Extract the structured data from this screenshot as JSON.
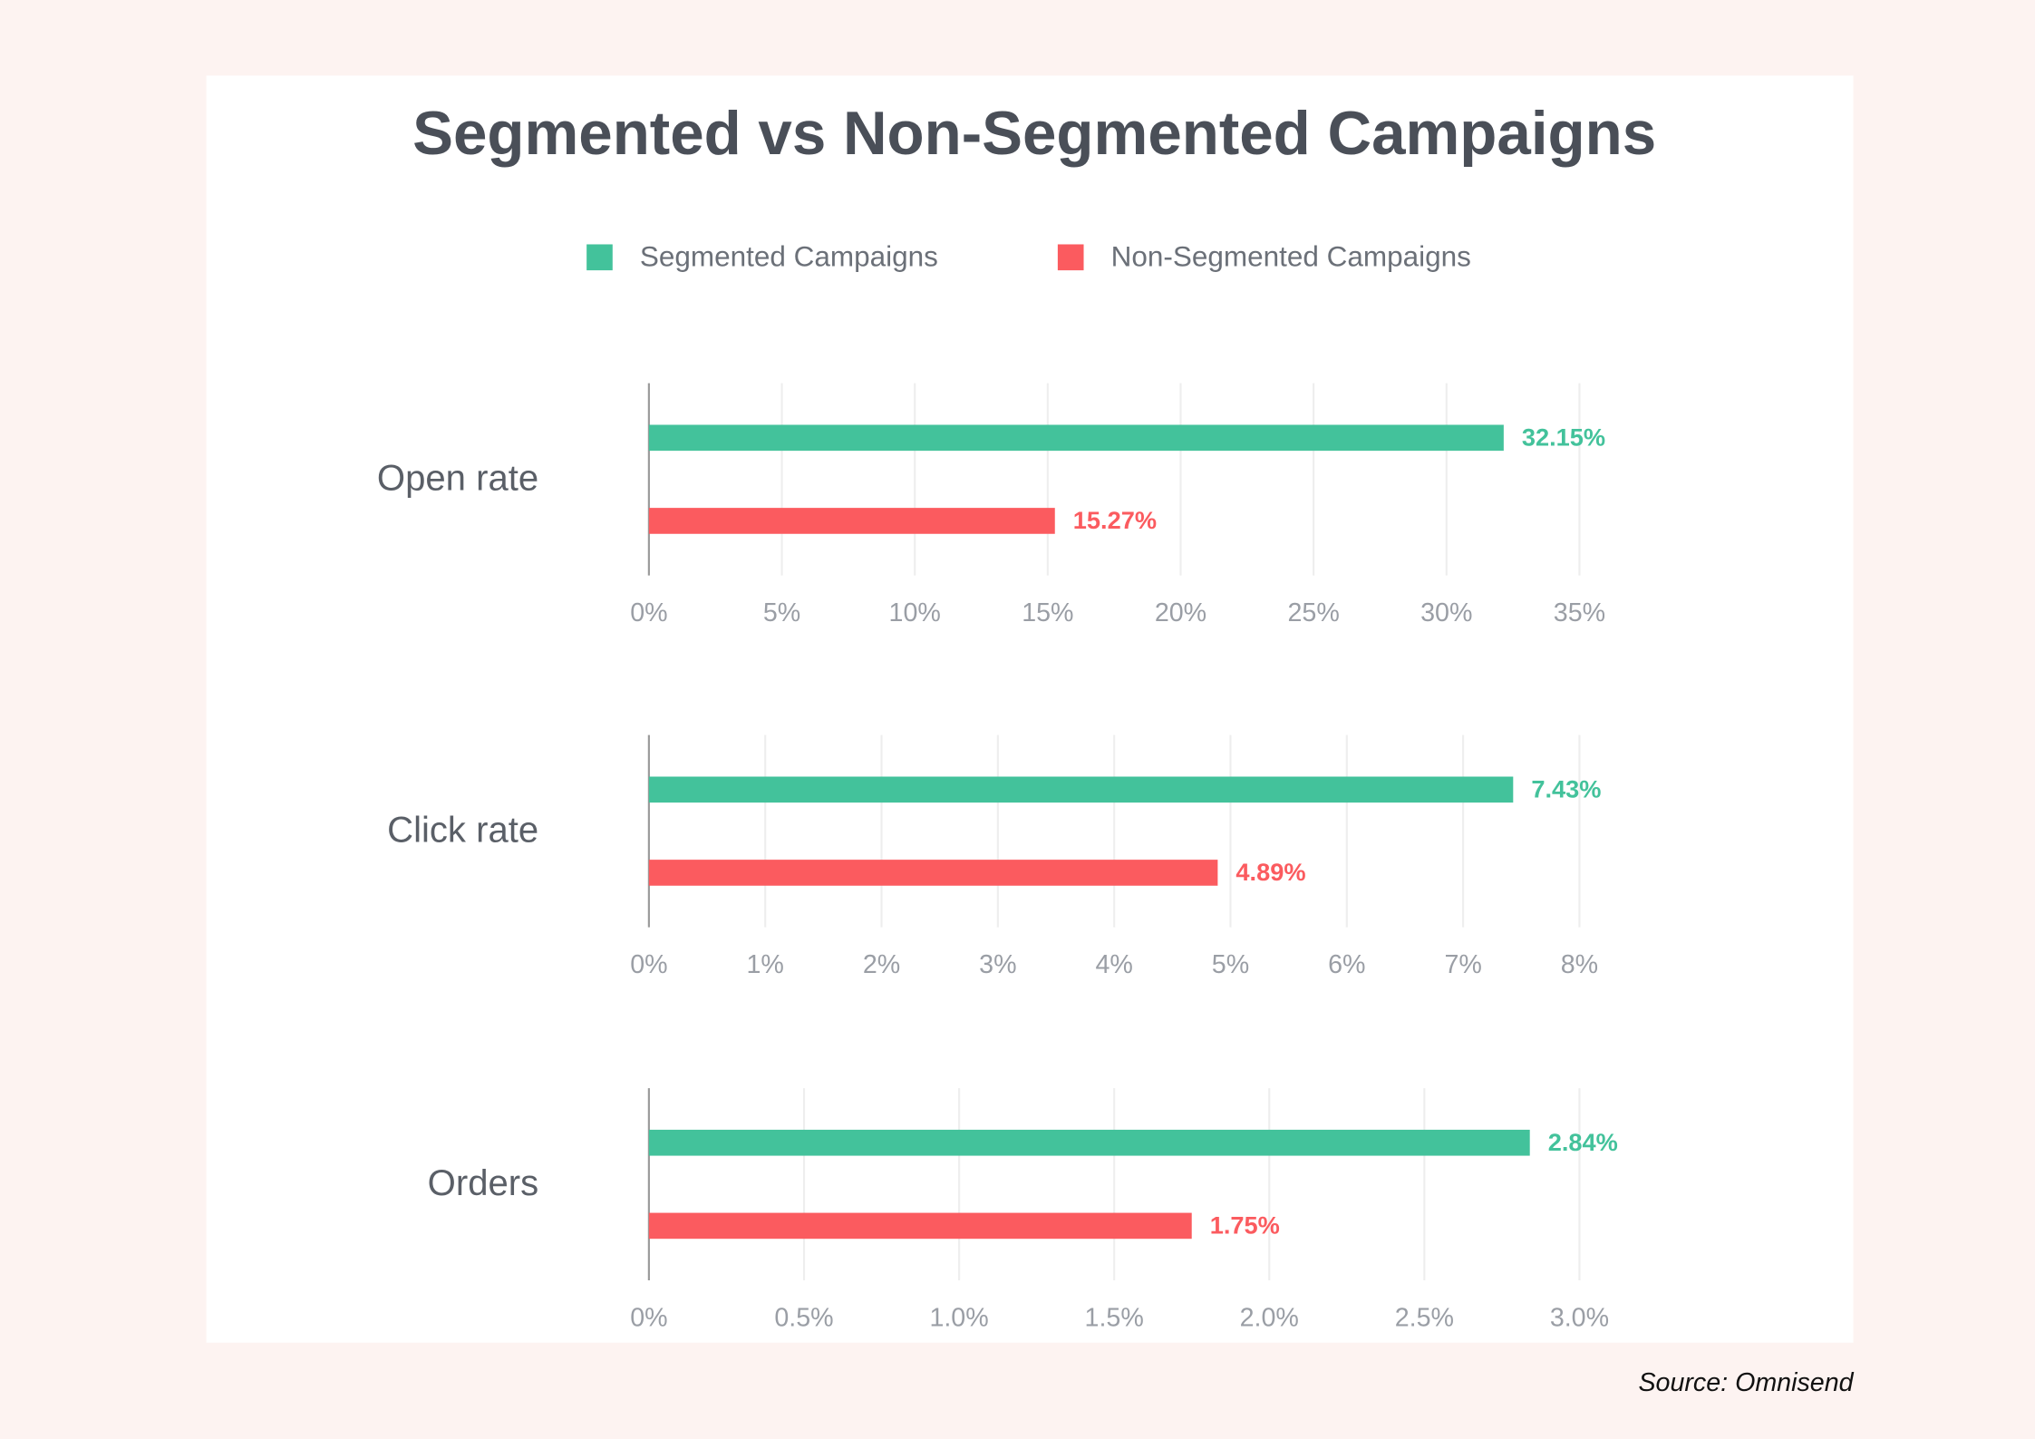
{
  "title": "Segmented vs Non-Segmented Campaigns",
  "source": "Source: Omnisend",
  "chart_data": [
    {
      "type": "bar",
      "orientation": "horizontal",
      "categories": [
        "Open rate"
      ],
      "series": [
        {
          "name": "Segmented Campaigns",
          "color": "#43c29b",
          "values": [
            32.15
          ],
          "value_labels": [
            "32.15%"
          ]
        },
        {
          "name": "Non-Segmented Campaigns",
          "color": "#fb5b5f",
          "values": [
            15.27
          ],
          "value_labels": [
            "15.27%"
          ]
        }
      ],
      "xlim": [
        0,
        35
      ],
      "xticks": [
        {
          "value": 0,
          "label": "0%"
        },
        {
          "value": 5,
          "label": "5%"
        },
        {
          "value": 10,
          "label": "10%"
        },
        {
          "value": 15,
          "label": "15%"
        },
        {
          "value": 20,
          "label": "20%"
        },
        {
          "value": 25,
          "label": "25%"
        },
        {
          "value": 30,
          "label": "30%"
        },
        {
          "value": 35,
          "label": "35%"
        }
      ],
      "grid": true
    },
    {
      "type": "bar",
      "orientation": "horizontal",
      "categories": [
        "Click rate"
      ],
      "series": [
        {
          "name": "Segmented Campaigns",
          "color": "#43c29b",
          "values": [
            7.43
          ],
          "value_labels": [
            "7.43%"
          ]
        },
        {
          "name": "Non-Segmented Campaigns",
          "color": "#fb5b5f",
          "values": [
            4.89
          ],
          "value_labels": [
            "4.89%"
          ]
        }
      ],
      "xlim": [
        0,
        8
      ],
      "xticks": [
        {
          "value": 0,
          "label": "0%"
        },
        {
          "value": 1,
          "label": "1%"
        },
        {
          "value": 2,
          "label": "2%"
        },
        {
          "value": 3,
          "label": "3%"
        },
        {
          "value": 4,
          "label": "4%"
        },
        {
          "value": 5,
          "label": "5%"
        },
        {
          "value": 6,
          "label": "6%"
        },
        {
          "value": 7,
          "label": "7%"
        },
        {
          "value": 8,
          "label": "8%"
        }
      ],
      "grid": true
    },
    {
      "type": "bar",
      "orientation": "horizontal",
      "categories": [
        "Orders"
      ],
      "series": [
        {
          "name": "Segmented Campaigns",
          "color": "#43c29b",
          "values": [
            2.84
          ],
          "value_labels": [
            "2.84%"
          ]
        },
        {
          "name": "Non-Segmented Campaigns",
          "color": "#fb5b5f",
          "values": [
            1.75
          ],
          "value_labels": [
            "1.75%"
          ]
        }
      ],
      "xlim": [
        0,
        3
      ],
      "xticks": [
        {
          "value": 0,
          "label": "0%"
        },
        {
          "value": 0.5,
          "label": "0.5%"
        },
        {
          "value": 1,
          "label": "1.0%"
        },
        {
          "value": 1.5,
          "label": "1.5%"
        },
        {
          "value": 2,
          "label": "2.0%"
        },
        {
          "value": 2.5,
          "label": "2.5%"
        },
        {
          "value": 3,
          "label": "3.0%"
        }
      ],
      "grid": true
    }
  ]
}
